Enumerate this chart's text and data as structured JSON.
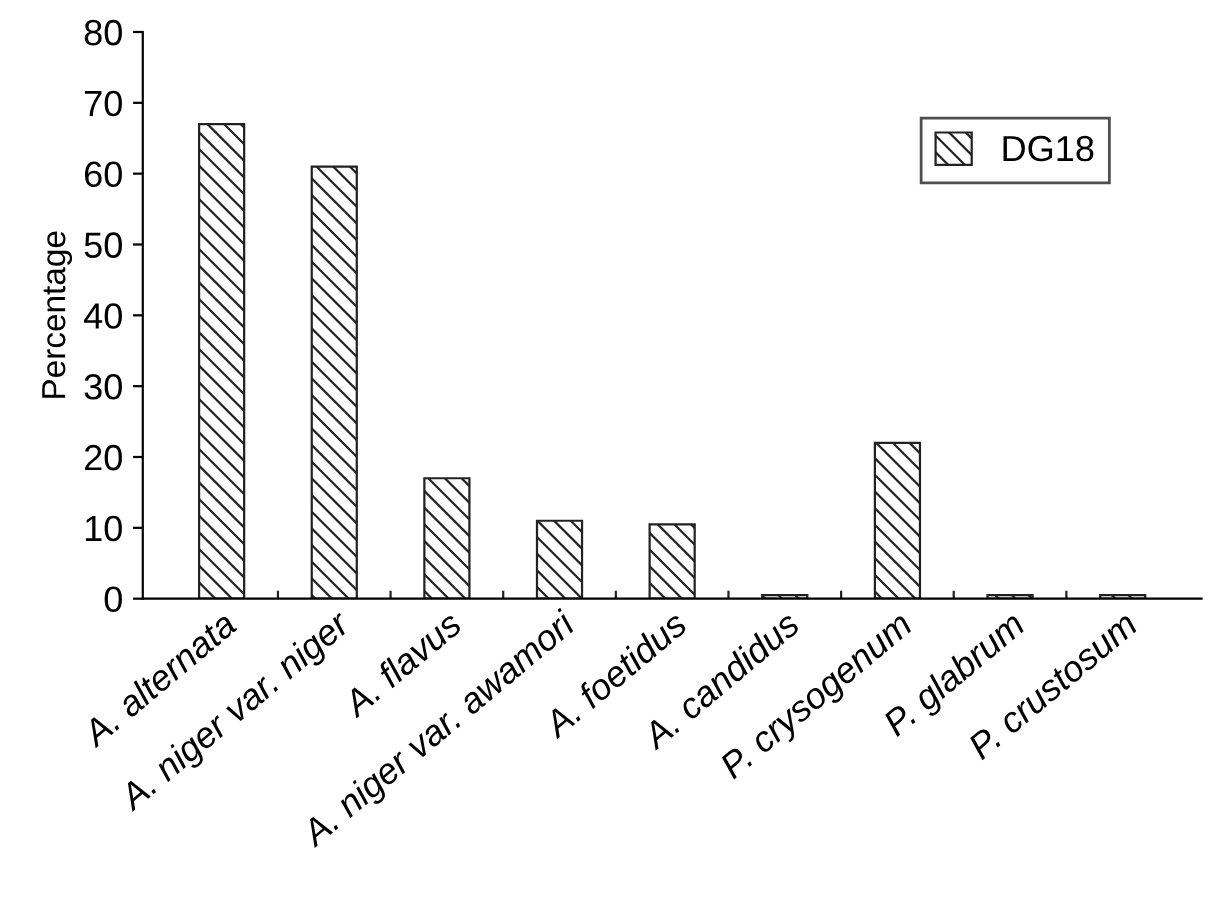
{
  "chart_data": {
    "type": "bar",
    "ylabel": "Percentage",
    "categories": [
      "A. alternata",
      "A. niger var. niger",
      "A. flavus",
      "A. niger var. awamori",
      "A. foetidus",
      "A. candidus",
      "P. crysogenum",
      "P. glabrum",
      "P. crustosum"
    ],
    "series": [
      {
        "name": "DG18",
        "color": "#222222",
        "values": [
          67,
          61,
          17,
          11,
          10.5,
          0.5,
          22,
          0.5,
          0.5
        ]
      }
    ],
    "ylim": [
      0,
      80
    ],
    "yticks": [
      0,
      10,
      20,
      30,
      40,
      50,
      60,
      70,
      80
    ],
    "grid": false,
    "legend": "top right"
  }
}
